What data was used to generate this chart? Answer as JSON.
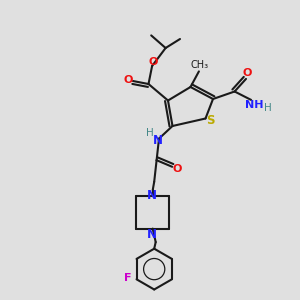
{
  "background_color": "#e0e0e0",
  "colors": {
    "C": "#1a1a1a",
    "N": "#2222ff",
    "O": "#ee1111",
    "S": "#bbaa00",
    "F": "#cc00cc",
    "H": "#448888",
    "bond": "#1a1a1a"
  },
  "figsize": [
    3.0,
    3.0
  ],
  "dpi": 100
}
